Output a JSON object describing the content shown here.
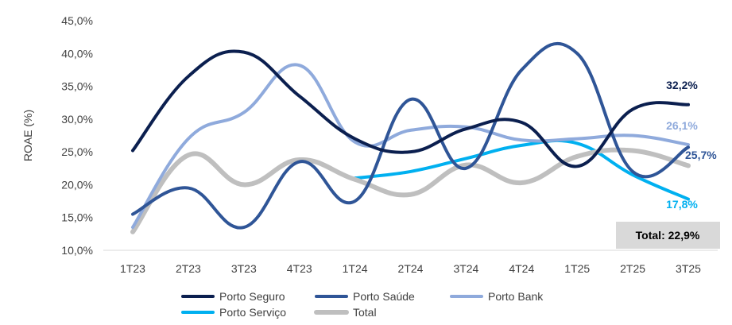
{
  "chart_data": {
    "type": "line",
    "title": "",
    "xlabel": "",
    "ylabel": "ROAE (%)",
    "ylim": [
      10,
      45
    ],
    "y_ticks": [
      "10,0%",
      "15,0%",
      "20,0%",
      "25,0%",
      "30,0%",
      "35,0%",
      "40,0%",
      "45,0%"
    ],
    "categories": [
      "1T23",
      "2T23",
      "3T23",
      "4T23",
      "1T24",
      "2T24",
      "3T24",
      "4T24",
      "1T25",
      "2T25",
      "3T25"
    ],
    "grid": false,
    "legend_position": "bottom",
    "series": [
      {
        "name": "Porto Seguro",
        "color": "#0b1f4f",
        "width": 4,
        "values": [
          25.2,
          36.5,
          40.2,
          33.5,
          27.0,
          25.0,
          28.5,
          29.5,
          22.8,
          31.5,
          32.2
        ],
        "end_label": "32,2%"
      },
      {
        "name": "Porto Saúde",
        "color": "#2f5597",
        "width": 4,
        "values": [
          15.5,
          19.5,
          13.5,
          23.5,
          17.5,
          33.0,
          22.5,
          37.5,
          40.0,
          22.0,
          25.7
        ],
        "end_label": "25,7%"
      },
      {
        "name": "Porto Bank",
        "color": "#8faadc",
        "width": 4,
        "values": [
          13.5,
          27.0,
          31.0,
          38.2,
          26.5,
          28.3,
          28.8,
          26.8,
          27.0,
          27.5,
          26.1
        ],
        "end_label": "26,1%"
      },
      {
        "name": "Porto Serviço",
        "color": "#00b0f0",
        "width": 4,
        "values": [
          null,
          null,
          null,
          null,
          21.0,
          22.0,
          24.0,
          26.0,
          26.3,
          21.5,
          17.8
        ],
        "end_label": "17,8%"
      },
      {
        "name": "Total",
        "color": "#bfbfbf",
        "width": 6,
        "values": [
          12.8,
          24.5,
          20.0,
          23.8,
          20.8,
          18.5,
          23.0,
          20.3,
          24.3,
          25.2,
          22.9
        ],
        "end_label": ""
      }
    ],
    "total_box": "Total: 22,9%"
  }
}
